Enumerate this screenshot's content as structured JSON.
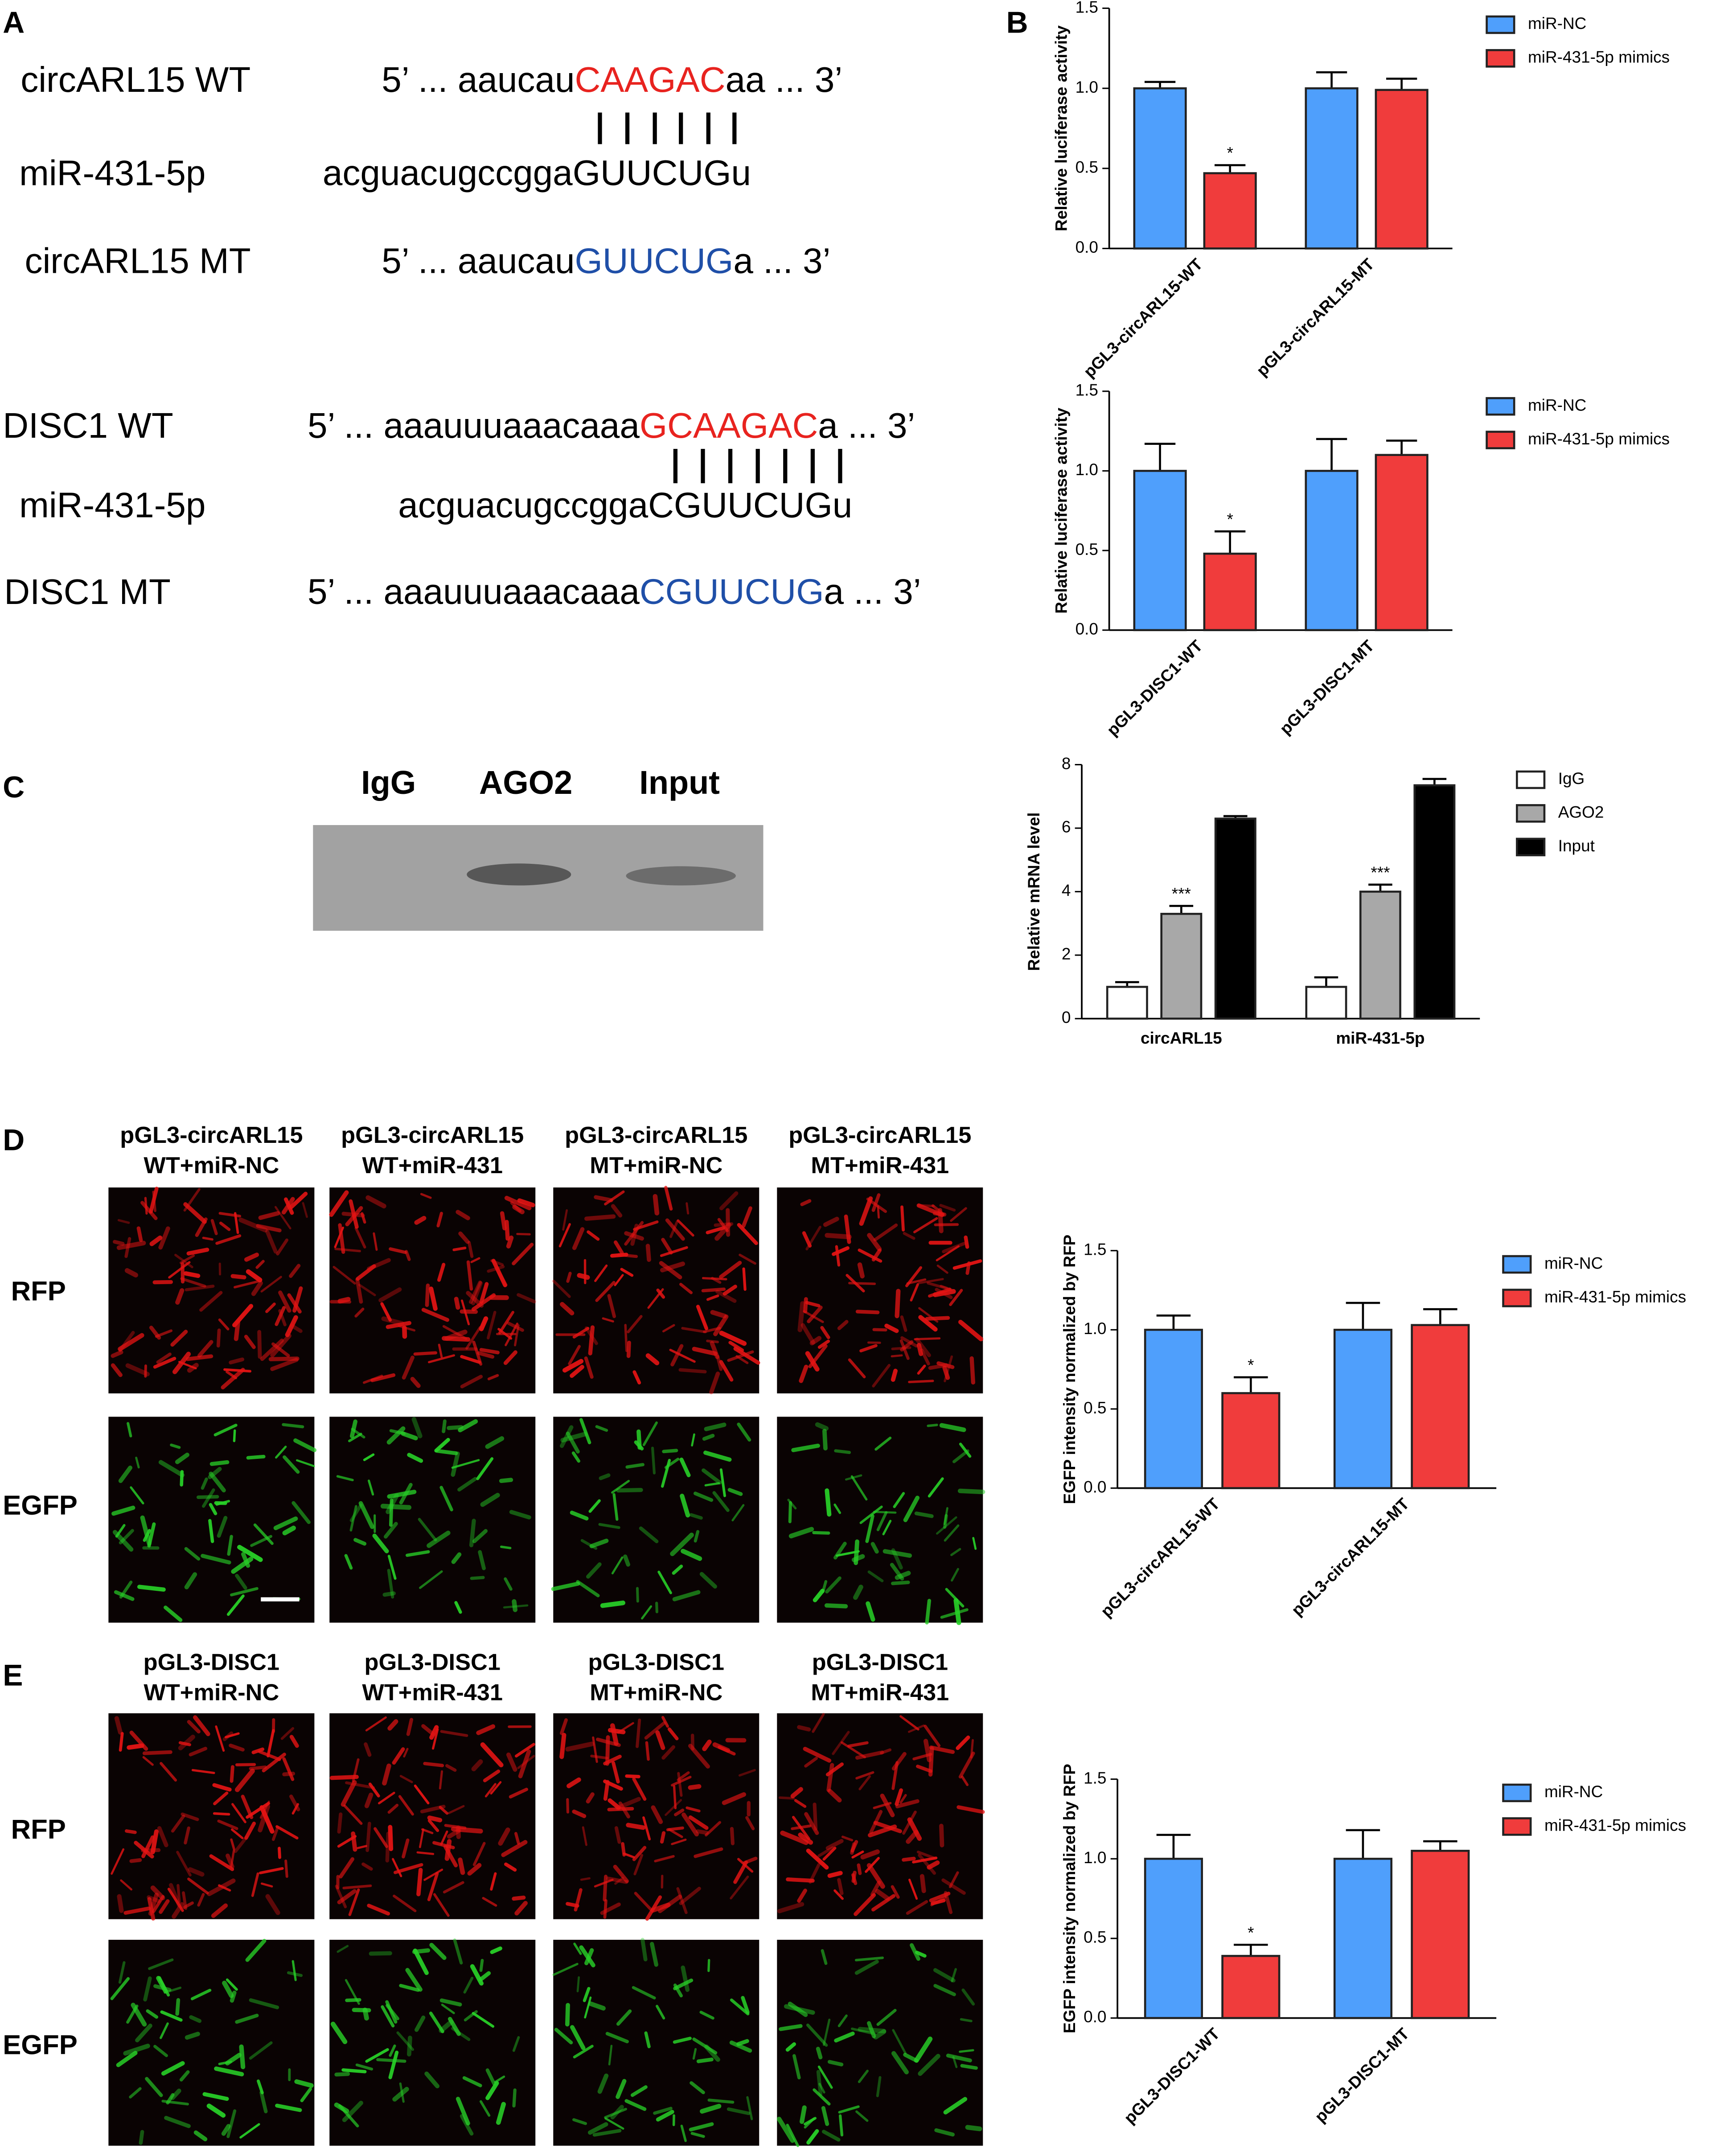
{
  "panels": [
    "A",
    "B",
    "C",
    "D",
    "E"
  ],
  "sequences": [
    {
      "label": "circARL15 WT",
      "parts": [
        "5’ ... aaucau",
        "CAAGAC",
        "aa ... 3’"
      ]
    },
    {
      "label": "miR-431-5p",
      "parts": [
        "acguacugccgga",
        "GUUCUG",
        "u"
      ]
    },
    {
      "label": "circARL15 MT",
      "parts": [
        "5’ ... aaucau",
        "GUUCUG",
        "a ... 3’"
      ]
    },
    {
      "label": "DISC1 WT",
      "parts": [
        "5’ ... aaauuuaaacaaa",
        "GCAAGAC",
        "a ... 3’"
      ]
    },
    {
      "label": "miR-431-5p",
      "parts": [
        "acguacugccgga",
        "CGUUCUG",
        "u"
      ]
    },
    {
      "label": "DISC1 MT",
      "parts": [
        "5’ ... aaauuuaaacaaa",
        "CGUUCUG",
        "a ... 3’"
      ]
    }
  ],
  "blot": {
    "lanes": [
      "IgG",
      "AGO2",
      "Input"
    ]
  },
  "imaging": [
    {
      "columns": [
        [
          "pGL3-circARL15",
          "WT+miR-NC"
        ],
        [
          "pGL3-circARL15",
          "WT+miR-431"
        ],
        [
          "pGL3-circARL15",
          "MT+miR-NC"
        ],
        [
          "pGL3-circARL15",
          "MT+miR-431"
        ]
      ],
      "rows": [
        "RFP",
        "EGFP"
      ]
    },
    {
      "columns": [
        [
          "pGL3-DISC1",
          "WT+miR-NC"
        ],
        [
          "pGL3-DISC1",
          "WT+miR-431"
        ],
        [
          "pGL3-DISC1",
          "MT+miR-NC"
        ],
        [
          "pGL3-DISC1",
          "MT+miR-431"
        ]
      ],
      "rows": [
        "RFP",
        "EGFP"
      ]
    }
  ],
  "chart_data": [
    {
      "type": "bar",
      "y_label": "Relative luciferase activity",
      "legend": "right",
      "categories": [
        "pGL3-circARL15-WT",
        "pGL3-circARL15-MT"
      ],
      "ylim": [
        0,
        1.5
      ],
      "yticks": [
        {
          "value": 0,
          "label": "0.0"
        },
        {
          "value": 0.5,
          "label": "0.5"
        },
        {
          "value": 1,
          "label": "1.0"
        },
        {
          "value": 1.5,
          "label": "1.5"
        }
      ],
      "series": [
        {
          "name": "miR-NC",
          "color": "#4f9ffc",
          "values": [
            1.0,
            1.0
          ],
          "errors": [
            0.04,
            0.1
          ]
        },
        {
          "name": "miR-431-5p mimics",
          "color": "#f03c3c",
          "values": [
            0.47,
            0.99
          ],
          "errors": [
            0.05,
            0.07
          ],
          "annotations": [
            "*",
            null
          ]
        }
      ]
    },
    {
      "type": "bar",
      "y_label": "Relative luciferase activity",
      "legend": "right",
      "categories": [
        "pGL3-DISC1-WT",
        "pGL3-DISC1-MT"
      ],
      "ylim": [
        0,
        1.5
      ],
      "yticks": [
        {
          "value": 0,
          "label": "0.0"
        },
        {
          "value": 0.5,
          "label": "0.5"
        },
        {
          "value": 1,
          "label": "1.0"
        },
        {
          "value": 1.5,
          "label": "1.5"
        }
      ],
      "series": [
        {
          "name": "miR-NC",
          "color": "#4f9ffc",
          "values": [
            1.0,
            1.0
          ],
          "errors": [
            0.17,
            0.2
          ]
        },
        {
          "name": "miR-431-5p mimics",
          "color": "#f03c3c",
          "values": [
            0.48,
            1.1
          ],
          "errors": [
            0.14,
            0.09
          ],
          "annotations": [
            "*",
            null
          ]
        }
      ]
    },
    {
      "type": "bar",
      "y_label": "Relative mRNA level",
      "legend": "right",
      "categories": [
        "circARL15",
        "miR-431-5p"
      ],
      "ylim": [
        0,
        8
      ],
      "yticks": [
        0,
        2,
        4,
        6,
        8
      ],
      "series": [
        {
          "name": "IgG",
          "color": "#ffffff",
          "values": [
            1.0,
            1.0
          ],
          "errors": [
            0.15,
            0.3
          ]
        },
        {
          "name": "AGO2",
          "color": "#a8a8a8",
          "values": [
            3.3,
            4.0
          ],
          "errors": [
            0.25,
            0.22
          ],
          "annotations": [
            "***",
            "***"
          ]
        },
        {
          "name": "Input",
          "color": "#000000",
          "values": [
            6.3,
            7.35
          ],
          "errors": [
            0.08,
            0.2
          ]
        }
      ]
    },
    {
      "type": "bar",
      "y_label": "EGFP intensity normalized by RFP",
      "legend": "right",
      "categories": [
        "pGL3-circARL15-WT",
        "pGL3-circARL15-MT"
      ],
      "ylim": [
        0,
        1.5
      ],
      "yticks": [
        {
          "value": 0,
          "label": "0.0"
        },
        {
          "value": 0.5,
          "label": "0.5"
        },
        {
          "value": 1,
          "label": "1.0"
        },
        {
          "value": 1.5,
          "label": "1.5"
        }
      ],
      "series": [
        {
          "name": "miR-NC",
          "color": "#4f9ffc",
          "values": [
            1.0,
            1.0
          ],
          "errors": [
            0.09,
            0.17
          ]
        },
        {
          "name": "miR-431-5p mimics",
          "color": "#f03c3c",
          "values": [
            0.6,
            1.03
          ],
          "errors": [
            0.1,
            0.1
          ],
          "annotations": [
            "*",
            null
          ]
        }
      ]
    },
    {
      "type": "bar",
      "y_label": "EGFP intensity normalized by RFP",
      "legend": "right",
      "categories": [
        "pGL3-DISC1-WT",
        "pGL3-DISC1-MT"
      ],
      "ylim": [
        0,
        1.5
      ],
      "yticks": [
        {
          "value": 0,
          "label": "0.0"
        },
        {
          "value": 0.5,
          "label": "0.5"
        },
        {
          "value": 1,
          "label": "1.0"
        },
        {
          "value": 1.5,
          "label": "1.5"
        }
      ],
      "series": [
        {
          "name": "miR-NC",
          "color": "#4f9ffc",
          "values": [
            1.0,
            1.0
          ],
          "errors": [
            0.15,
            0.18
          ]
        },
        {
          "name": "miR-431-5p mimics",
          "color": "#f03c3c",
          "values": [
            0.39,
            1.05
          ],
          "errors": [
            0.07,
            0.06
          ],
          "annotations": [
            "*",
            null
          ]
        }
      ]
    }
  ]
}
